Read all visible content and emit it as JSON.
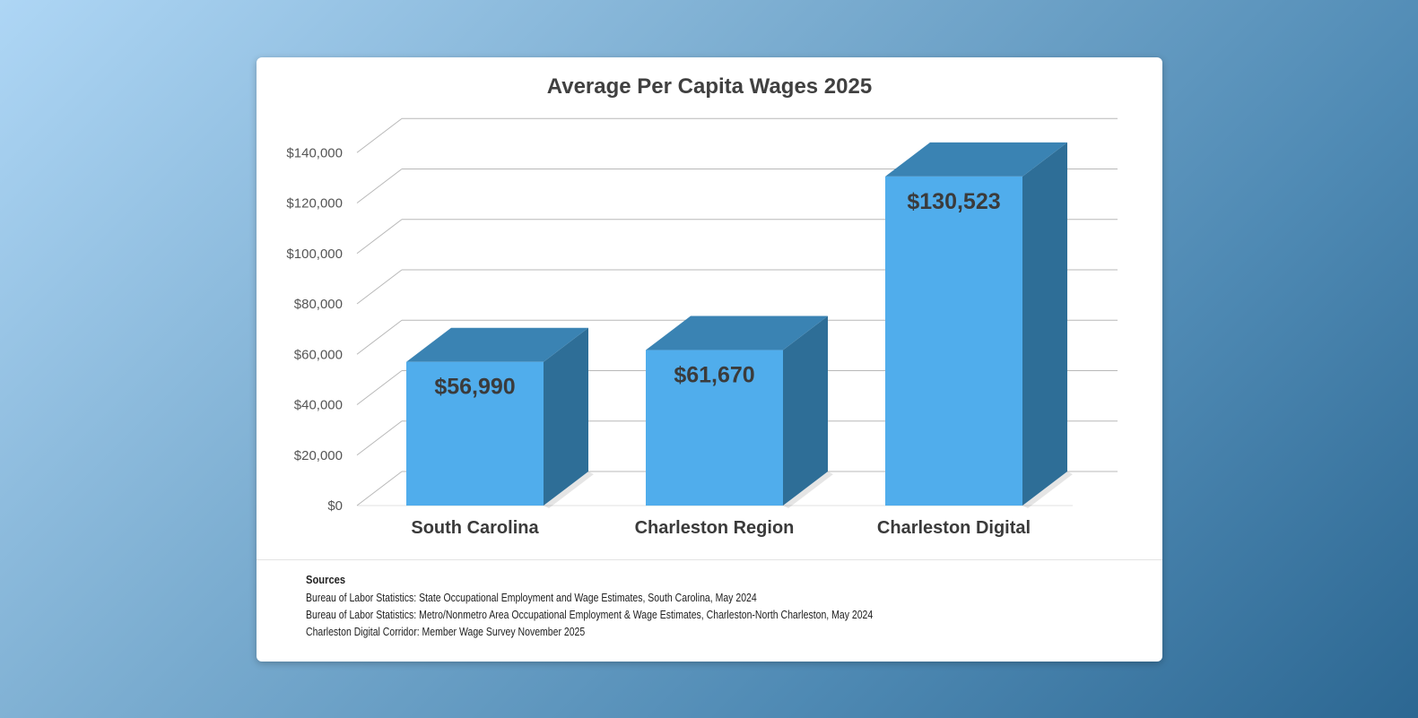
{
  "chart_data": {
    "type": "bar",
    "title": "Average Per Capita Wages 2025",
    "categories": [
      "South Carolina",
      "Charleston Region",
      "Charleston Digital"
    ],
    "values": [
      56990,
      61670,
      130523
    ],
    "data_labels": [
      "$56,990",
      "$61,670",
      "$130,523"
    ],
    "ylim": [
      0,
      140000
    ],
    "yticks": [
      0,
      20000,
      40000,
      60000,
      80000,
      100000,
      120000,
      140000
    ],
    "ytick_labels": [
      "$0",
      "$20,000",
      "$40,000",
      "$60,000",
      "$80,000",
      "$100,000",
      "$120,000",
      "$140,000"
    ],
    "xlabel": "",
    "ylabel": "",
    "grid": true,
    "style": "3d-column",
    "colors": {
      "front": "#50adec",
      "top": "#3a83b3",
      "side": "#2e6e97",
      "grid": "#b8b8b8"
    }
  },
  "sources": {
    "heading": "Sources",
    "lines": [
      "Bureau of Labor Statistics: State Occupational Employment and Wage Estimates, South Carolina, May 2024",
      "Bureau of Labor Statistics: Metro/Nonmetro Area Occupational Employment & Wage Estimates, Charleston-North Charleston, May 2024",
      "Charleston Digital Corridor: Member Wage Survey November 2025"
    ]
  }
}
